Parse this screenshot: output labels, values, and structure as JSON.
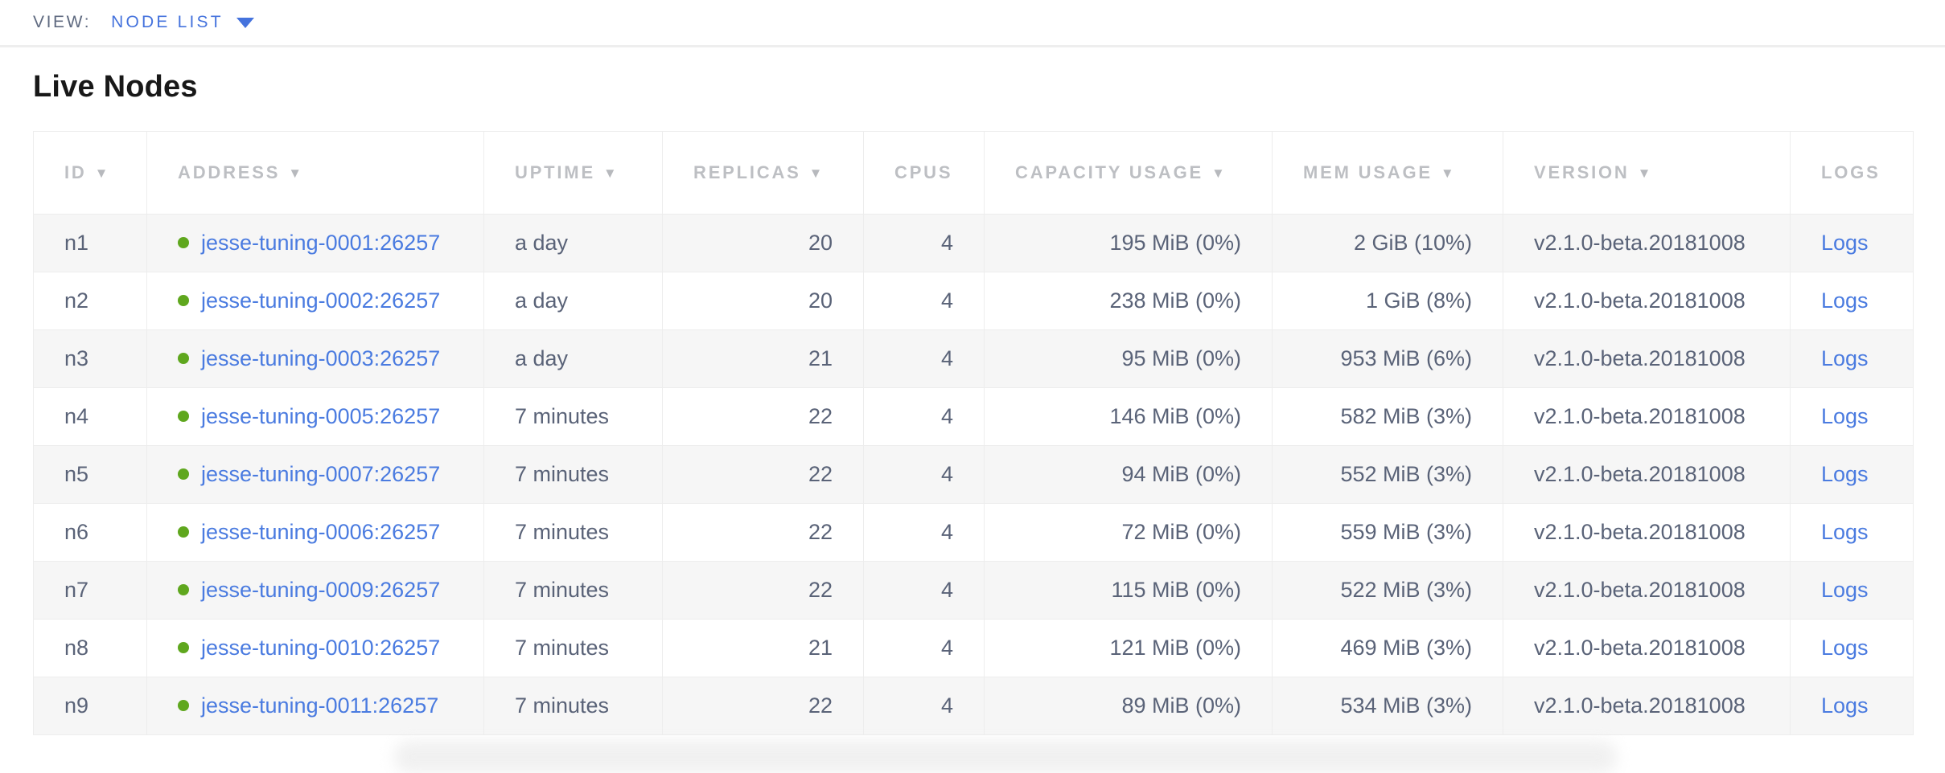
{
  "view_bar": {
    "label": "VIEW:",
    "selected": "NODE LIST"
  },
  "page": {
    "title": "Live Nodes"
  },
  "table": {
    "sort_icon": "▼",
    "columns": [
      {
        "key": "id",
        "label": "ID",
        "sortable": true
      },
      {
        "key": "address",
        "label": "ADDRESS",
        "sortable": true
      },
      {
        "key": "uptime",
        "label": "UPTIME",
        "sortable": true
      },
      {
        "key": "replicas",
        "label": "REPLICAS",
        "sortable": true
      },
      {
        "key": "cpus",
        "label": "CPUS",
        "sortable": false
      },
      {
        "key": "capacity_usage",
        "label": "CAPACITY USAGE",
        "sortable": true
      },
      {
        "key": "mem_usage",
        "label": "MEM USAGE",
        "sortable": true
      },
      {
        "key": "version",
        "label": "VERSION",
        "sortable": true
      },
      {
        "key": "logs",
        "label": "LOGS",
        "sortable": false
      }
    ],
    "rows": [
      {
        "id": "n1",
        "address": "jesse-tuning-0001:26257",
        "uptime": "a day",
        "replicas": "20",
        "cpus": "4",
        "capacity_usage": "195 MiB (0%)",
        "mem_usage": "2 GiB (10%)",
        "version": "v2.1.0-beta.20181008",
        "logs_label": "Logs",
        "status": "live"
      },
      {
        "id": "n2",
        "address": "jesse-tuning-0002:26257",
        "uptime": "a day",
        "replicas": "20",
        "cpus": "4",
        "capacity_usage": "238 MiB (0%)",
        "mem_usage": "1 GiB (8%)",
        "version": "v2.1.0-beta.20181008",
        "logs_label": "Logs",
        "status": "live"
      },
      {
        "id": "n3",
        "address": "jesse-tuning-0003:26257",
        "uptime": "a day",
        "replicas": "21",
        "cpus": "4",
        "capacity_usage": "95 MiB (0%)",
        "mem_usage": "953 MiB (6%)",
        "version": "v2.1.0-beta.20181008",
        "logs_label": "Logs",
        "status": "live"
      },
      {
        "id": "n4",
        "address": "jesse-tuning-0005:26257",
        "uptime": "7 minutes",
        "replicas": "22",
        "cpus": "4",
        "capacity_usage": "146 MiB (0%)",
        "mem_usage": "582 MiB (3%)",
        "version": "v2.1.0-beta.20181008",
        "logs_label": "Logs",
        "status": "live"
      },
      {
        "id": "n5",
        "address": "jesse-tuning-0007:26257",
        "uptime": "7 minutes",
        "replicas": "22",
        "cpus": "4",
        "capacity_usage": "94 MiB (0%)",
        "mem_usage": "552 MiB (3%)",
        "version": "v2.1.0-beta.20181008",
        "logs_label": "Logs",
        "status": "live"
      },
      {
        "id": "n6",
        "address": "jesse-tuning-0006:26257",
        "uptime": "7 minutes",
        "replicas": "22",
        "cpus": "4",
        "capacity_usage": "72 MiB (0%)",
        "mem_usage": "559 MiB (3%)",
        "version": "v2.1.0-beta.20181008",
        "logs_label": "Logs",
        "status": "live"
      },
      {
        "id": "n7",
        "address": "jesse-tuning-0009:26257",
        "uptime": "7 minutes",
        "replicas": "22",
        "cpus": "4",
        "capacity_usage": "115 MiB (0%)",
        "mem_usage": "522 MiB (3%)",
        "version": "v2.1.0-beta.20181008",
        "logs_label": "Logs",
        "status": "live"
      },
      {
        "id": "n8",
        "address": "jesse-tuning-0010:26257",
        "uptime": "7 minutes",
        "replicas": "21",
        "cpus": "4",
        "capacity_usage": "121 MiB (0%)",
        "mem_usage": "469 MiB (3%)",
        "version": "v2.1.0-beta.20181008",
        "logs_label": "Logs",
        "status": "live"
      },
      {
        "id": "n9",
        "address": "jesse-tuning-0011:26257",
        "uptime": "7 minutes",
        "replicas": "22",
        "cpus": "4",
        "capacity_usage": "89 MiB (0%)",
        "mem_usage": "534 MiB (3%)",
        "version": "v2.1.0-beta.20181008",
        "logs_label": "Logs",
        "status": "live"
      }
    ]
  },
  "colors": {
    "accent_blue": "#4573dd",
    "link_blue": "#4a7be0",
    "live_dot_green": "#5fa71e",
    "header_gray": "#bdbfc3",
    "cell_text": "#5a6378",
    "row_stripe": "#f6f6f6",
    "border": "#ededed"
  }
}
